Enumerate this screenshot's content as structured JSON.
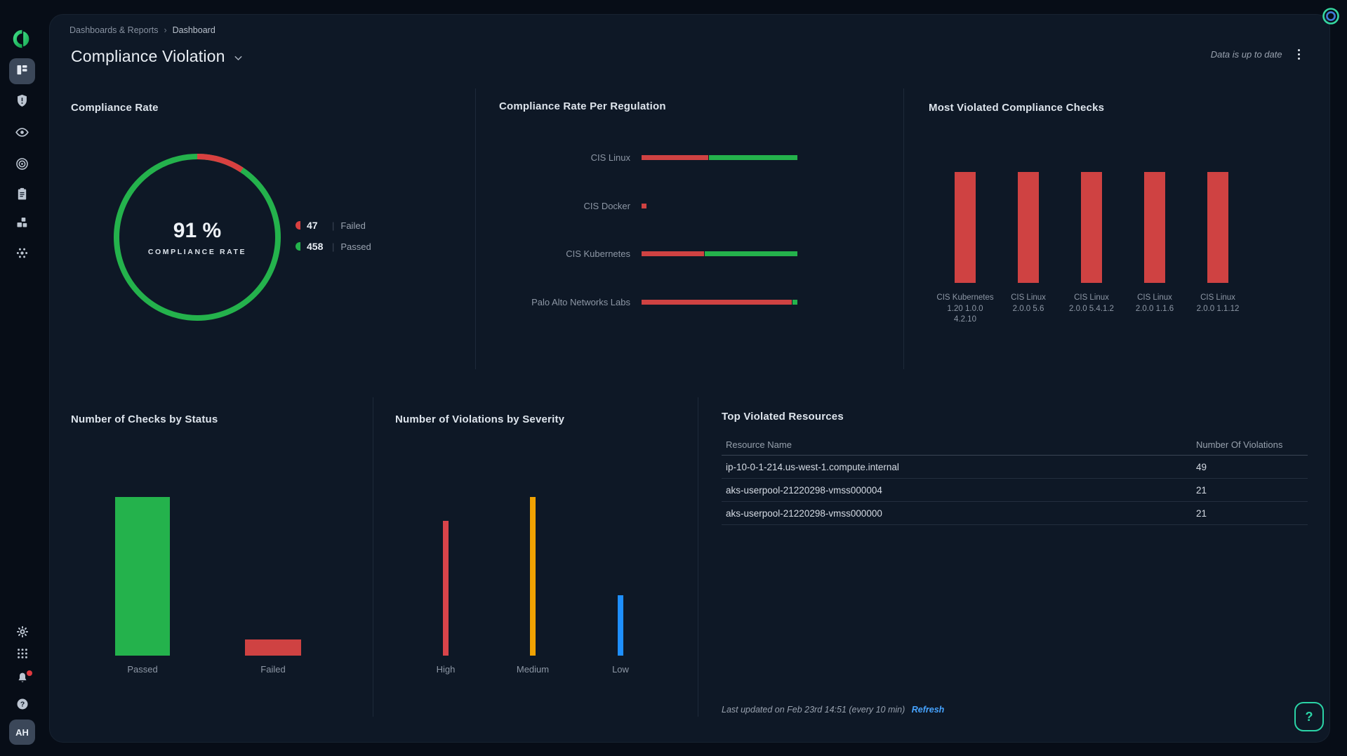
{
  "colors": {
    "page_bg": "#070d17",
    "card_bg": "#0e1826",
    "green": "#24b24c",
    "red": "#cf4242",
    "orange": "#f0a202",
    "blue": "#1e8ffd",
    "link_blue": "#46a3ff",
    "teal_accent": "#2bd3a6"
  },
  "sidebar": {
    "logo_icon": "brand-logo",
    "nav_items": [
      {
        "icon": "dashboard-icon",
        "selected": true
      },
      {
        "icon": "shield-alert-icon",
        "selected": false
      },
      {
        "icon": "eye-icon",
        "selected": false
      },
      {
        "icon": "target-icon",
        "selected": false
      },
      {
        "icon": "clipboard-icon",
        "selected": false
      },
      {
        "icon": "blocks-icon",
        "selected": false
      },
      {
        "icon": "burst-icon",
        "selected": false
      }
    ],
    "bottom_items": [
      {
        "icon": "gear-icon",
        "badge": false
      },
      {
        "icon": "grid-dots-icon",
        "badge": false
      },
      {
        "icon": "bell-icon",
        "badge": true
      },
      {
        "icon": "help-circle-icon",
        "badge": false
      }
    ],
    "avatar_label": "AH"
  },
  "header": {
    "breadcrumb_root": "Dashboards & Reports",
    "breadcrumb_current": "Dashboard",
    "title": "Compliance Violation",
    "status_note": "Data is up to date"
  },
  "chart_data": [
    {
      "id": "compliance_rate",
      "type": "pie",
      "title": "Compliance Rate",
      "center_value": "91 %",
      "center_label": "COMPLIANCE RATE",
      "series": [
        {
          "name": "Failed",
          "value": 47,
          "color": "#d84040"
        },
        {
          "name": "Passed",
          "value": 458,
          "color": "#24b24c"
        }
      ],
      "legend_position": "right"
    },
    {
      "id": "compliance_rate_per_regulation",
      "type": "bar",
      "title": "Compliance Rate Per Regulation",
      "orientation": "horizontal",
      "stacked": true,
      "categories": [
        "CIS Linux",
        "CIS Docker",
        "CIS Kubernetes",
        "Palo Alto Networks Labs"
      ],
      "series": [
        {
          "name": "Failed",
          "color": "#cf4242",
          "width_pct": [
            43,
            3,
            40,
            97
          ]
        },
        {
          "name": "Passed",
          "color": "#24b24c",
          "width_pct": [
            57,
            0,
            60,
            3
          ]
        }
      ]
    },
    {
      "id": "most_violated_checks",
      "type": "bar",
      "title": "Most Violated Compliance Checks",
      "categories": [
        "CIS Kubernetes 1.20 1.0.0 4.2.10",
        "CIS Linux 2.0.0 5.6",
        "CIS Linux 2.0.0 5.4.1.2",
        "CIS Linux 2.0.0 1.1.6",
        "CIS Linux 2.0.0 1.1.12"
      ],
      "category_label_lines": [
        "CIS Kubernetes\n1.20 1.0.0\n4.2.10",
        "CIS Linux\n2.0.0 5.6",
        "CIS Linux\n2.0.0 5.4.1.2",
        "CIS Linux\n2.0.0 1.1.6",
        "CIS Linux\n2.0.0 1.1.12"
      ],
      "values_relative_pct": [
        100,
        100,
        100,
        100,
        100
      ],
      "color": "#cf4242"
    },
    {
      "id": "checks_by_status",
      "type": "bar",
      "title": "Number of Checks by Status",
      "categories": [
        "Passed",
        "Failed"
      ],
      "values": [
        458,
        47
      ],
      "colors": [
        "#24b24c",
        "#cf4242"
      ]
    },
    {
      "id": "violations_by_severity",
      "type": "bar",
      "title": "Number of Violations by Severity",
      "categories": [
        "High",
        "Medium",
        "Low"
      ],
      "values_relative_pct": [
        85,
        100,
        38
      ],
      "colors": [
        "#d9444a",
        "#f0a202",
        "#1e8ffd"
      ]
    },
    {
      "id": "top_violated_resources",
      "type": "table",
      "title": "Top Violated Resources",
      "columns": [
        "Resource Name",
        "Number Of Violations"
      ],
      "rows": [
        [
          "ip-10-0-1-214.us-west-1.compute.internal",
          "49"
        ],
        [
          "aks-userpool-21220298-vmss000004",
          "21"
        ],
        [
          "aks-userpool-21220298-vmss000000",
          "21"
        ]
      ]
    }
  ],
  "footer": {
    "last_updated": "Last updated on Feb 23rd 14:51 (every 10 min)",
    "refresh_label": "Refresh"
  },
  "ui": {
    "help_label": "?"
  }
}
